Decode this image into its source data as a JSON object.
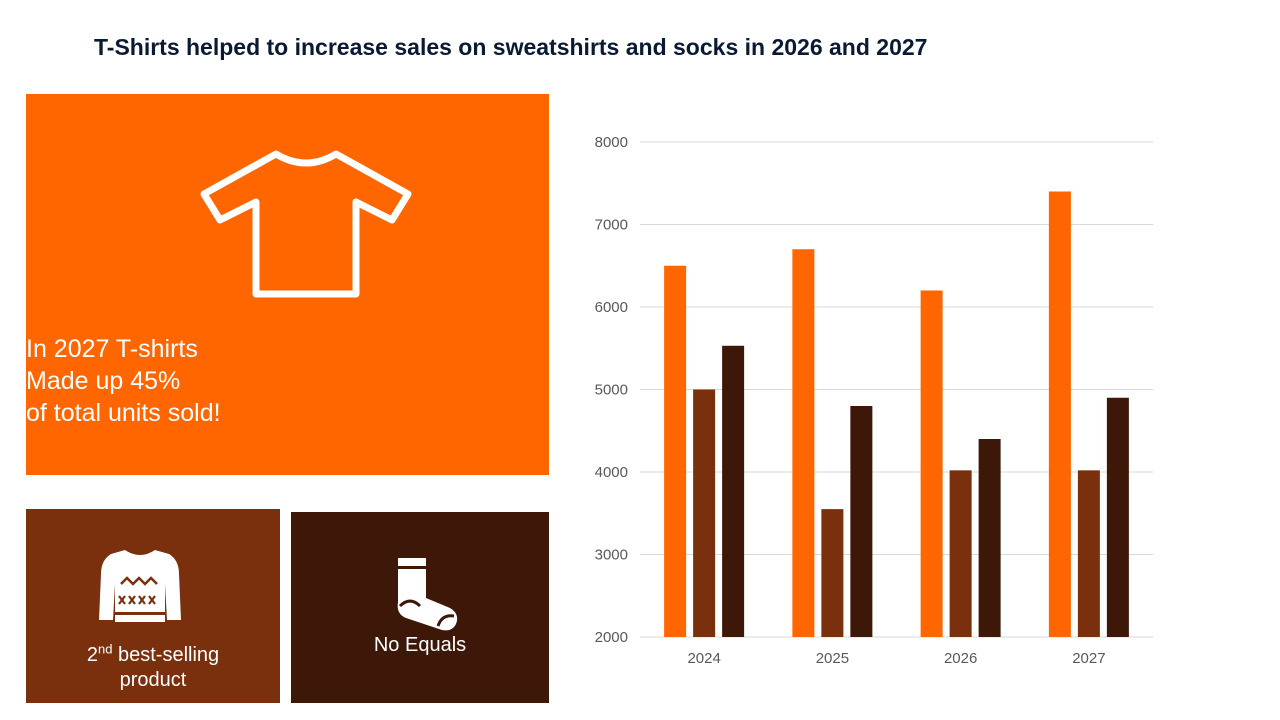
{
  "title": "T-Shirts helped to increase sales on sweatshirts and socks in 2026 and 2027",
  "main_card": {
    "icon": "tshirt-icon",
    "lines": [
      "In 2027 T-shirts",
      "Made up 45%",
      "of total units sold!"
    ],
    "color": "#ff6600"
  },
  "sweatshirt_card": {
    "icon": "sweatshirt-icon",
    "rank": "2",
    "rank_suffix": "nd",
    "label_rest": " best-selling",
    "label_line2": "product",
    "color": "#7a2f0d"
  },
  "socks_card": {
    "icon": "sock-icon",
    "label": "No Equals",
    "color": "#3d1708"
  },
  "chart_data": {
    "type": "bar",
    "categories": [
      "2024",
      "2025",
      "2026",
      "2027"
    ],
    "series": [
      {
        "values": [
          6500,
          6700,
          6200,
          7400
        ],
        "color": "#ff6600"
      },
      {
        "values": [
          5000,
          3550,
          4020,
          4020
        ],
        "color": "#7a2f0d"
      },
      {
        "values": [
          5530,
          4800,
          4400,
          4900
        ],
        "color": "#3d1708"
      }
    ],
    "ylim": [
      2000,
      8000
    ],
    "yticks": [
      2000,
      3000,
      4000,
      5000,
      6000,
      7000,
      8000
    ],
    "grid": true,
    "xlabel": "",
    "ylabel": ""
  }
}
